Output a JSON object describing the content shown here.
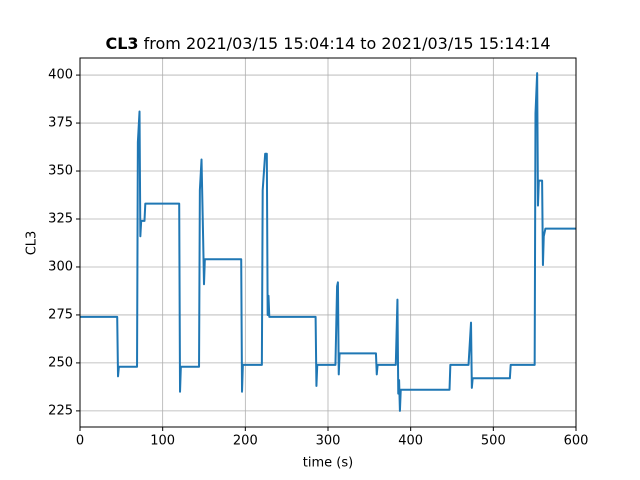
{
  "chart_data": {
    "type": "line",
    "title": [
      "CL3",
      "from 2021/03/15 15:04:14 to 2021/03/15 15:14:14"
    ],
    "x_label": "time (s)",
    "y_label": "CL3",
    "xlim": [
      0,
      600
    ],
    "ylim": [
      216.6,
      408.9
    ],
    "xticks": [
      0,
      100,
      200,
      300,
      400,
      500,
      600
    ],
    "yticks": [
      225,
      250,
      275,
      300,
      325,
      350,
      375,
      400
    ],
    "grid": true,
    "series": [
      {
        "color": "#1f77b4",
        "x": [
          0,
          45,
          46,
          47,
          69,
          70,
          72,
          73,
          74,
          78,
          79,
          120,
          121,
          122,
          144,
          145,
          147,
          149,
          150,
          151,
          195,
          196,
          197,
          220,
          221,
          224,
          226,
          227,
          228,
          229,
          285,
          286,
          287,
          309,
          311,
          312,
          313,
          314,
          358,
          359,
          360,
          382,
          384,
          385,
          386,
          387,
          388,
          447,
          448,
          470,
          473,
          474,
          475,
          520,
          521,
          550,
          551,
          553,
          554,
          555,
          559,
          560,
          561,
          563,
          600
        ],
        "values": [
          274,
          274,
          243,
          248,
          248,
          365,
          381,
          316,
          324,
          324,
          333,
          333,
          235,
          248,
          248,
          340,
          356,
          314,
          291,
          304,
          304,
          235,
          249,
          249,
          340,
          359,
          359,
          275,
          285,
          274,
          274,
          238,
          249,
          249,
          290,
          292,
          244,
          255,
          255,
          244,
          249,
          249,
          283,
          234,
          241,
          225,
          236,
          236,
          249,
          249,
          271,
          237,
          242,
          242,
          249,
          249,
          380,
          401,
          332,
          345,
          345,
          301,
          316,
          320,
          320
        ]
      }
    ]
  }
}
